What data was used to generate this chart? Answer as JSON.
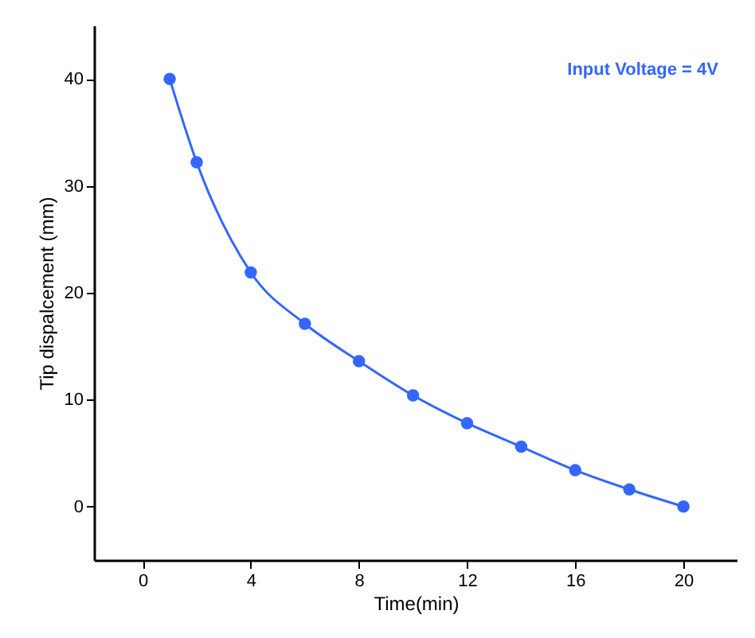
{
  "chart_data": {
    "type": "line",
    "xlabel": "Time(min)",
    "ylabel": "Tip dispalcement (mm)",
    "x": [
      1,
      2,
      4,
      6,
      8,
      10,
      12,
      14,
      16,
      18,
      20
    ],
    "series": [
      {
        "color": "#3366ff",
        "values": [
          40,
          32.2,
          21.9,
          17.1,
          13.6,
          10.4,
          7.8,
          5.6,
          3.4,
          1.6,
          0
        ]
      }
    ],
    "xlim": [
      -1.8,
      22
    ],
    "xticks": [
      0,
      4,
      8,
      12,
      16,
      20
    ],
    "ylim": [
      -5,
      45
    ],
    "yticks": [
      0,
      10,
      20,
      30,
      40
    ],
    "marker": "circle",
    "grid": false,
    "annotations": [
      "Input Voltage = 4V"
    ]
  }
}
